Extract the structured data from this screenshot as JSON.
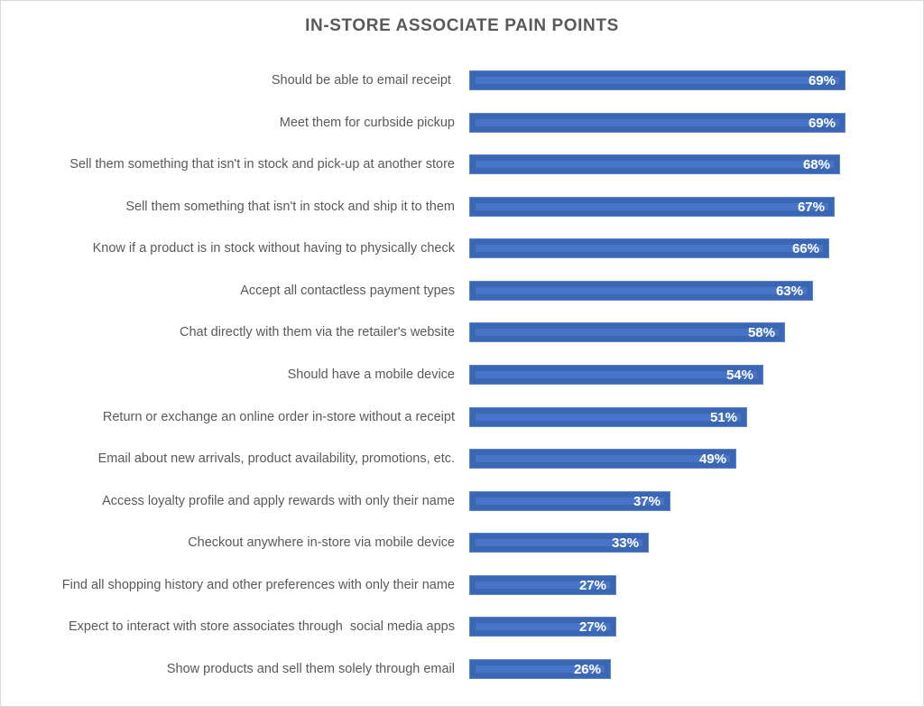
{
  "chart_data": {
    "type": "bar",
    "orientation": "horizontal",
    "title": "IN-STORE ASSOCIATE PAIN POINTS",
    "xlabel": "",
    "ylabel": "",
    "grid": false,
    "legend": null,
    "value_format": "percent",
    "bar_color": "#4472C4",
    "categories": [
      "Should be able to email receipt ",
      "Meet them for curbside pickup",
      "Sell them something that isn't in stock and pick-up at another store",
      "Sell them something that isn't in stock and ship it to them",
      "Know if a product is in stock without having to physically check",
      "Accept all contactless payment types",
      "Chat directly with them via the retailer's website",
      "Should have a mobile device",
      "Return or exchange an online order in-store without a receipt",
      "Email about new arrivals, product availability, promotions, etc.",
      "Access loyalty profile and apply rewards with only their name",
      "Checkout anywhere in-store via mobile device",
      "Find all shopping history and other preferences with only their name",
      "Expect to interact with store associates through  social media apps",
      "Show products and sell them solely through email"
    ],
    "values": [
      69,
      69,
      68,
      67,
      66,
      63,
      58,
      54,
      51,
      49,
      37,
      33,
      27,
      27,
      26
    ],
    "data_labels": [
      "69%",
      "69%",
      "68%",
      "67%",
      "66%",
      "63%",
      "58%",
      "54%",
      "51%",
      "49%",
      "37%",
      "33%",
      "27%",
      "27%",
      "26%"
    ]
  }
}
